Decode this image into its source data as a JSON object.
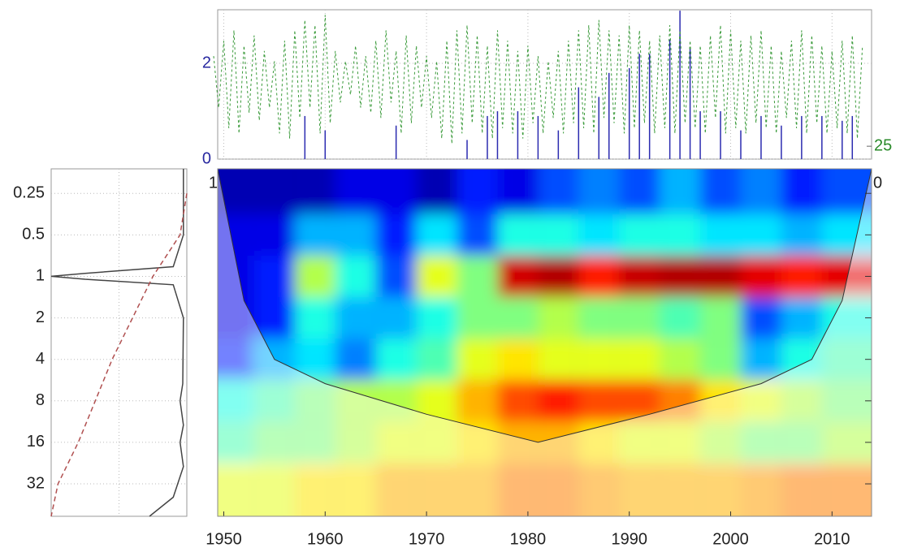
{
  "chart_data": [
    {
      "type": "line",
      "xlim": [
        1949.4,
        2013.9
      ],
      "ylim": [
        0,
        3.12
      ],
      "yticks": [
        0,
        2
      ],
      "y_color": "#2828a0",
      "y2lim": [
        20,
        78
      ],
      "y2ticks": [
        25
      ],
      "y2_color": "#2a8a2a",
      "series": [
        {
          "color": "#2b2bb0",
          "style": "stem",
          "x": [
            1958,
            1960,
            1967,
            1974,
            1976,
            1977,
            1979,
            1981,
            1983,
            1985,
            1987,
            1988,
            1990,
            1991,
            1992,
            1994,
            1995,
            1996,
            1997,
            1999,
            2001,
            2003,
            2005,
            2007,
            2009,
            2011,
            2012
          ],
          "values": [
            0.9,
            0.6,
            0.7,
            0.4,
            0.9,
            1.0,
            1.0,
            0.9,
            0.6,
            1.5,
            1.3,
            1.8,
            1.9,
            2.2,
            2.2,
            2.5,
            3.1,
            2.3,
            1.0,
            1.0,
            0.6,
            0.9,
            0.7,
            0.9,
            0.9,
            0.8,
            0.9
          ]
        },
        {
          "color": "#3a9a3a",
          "style": "dashed",
          "axis": "y2",
          "x": [
            1949,
            1949.5,
            1950,
            1950.5,
            1951,
            1951.5,
            1952,
            1952.5,
            1953,
            1953.5,
            1954,
            1954.5,
            1955,
            1955.5,
            1956,
            1956.5,
            1957,
            1957.5,
            1958,
            1958.5,
            1959,
            1959.5,
            1960,
            1960.5,
            1961,
            1961.5,
            1962,
            1962.5,
            1963,
            1963.5,
            1964,
            1964.5,
            1965,
            1965.5,
            1966,
            1966.5,
            1967,
            1967.5,
            1968,
            1968.5,
            1969,
            1969.5,
            1970,
            1970.5,
            1971,
            1971.5,
            1972,
            1972.5,
            1973,
            1973.5,
            1974,
            1974.5,
            1975,
            1975.5,
            1976,
            1976.5,
            1977,
            1977.5,
            1978,
            1978.5,
            1979,
            1979.5,
            1980,
            1980.5,
            1981,
            1981.5,
            1982,
            1982.5,
            1983,
            1983.5,
            1984,
            1984.5,
            1985,
            1985.5,
            1986,
            1986.5,
            1987,
            1987.5,
            1988,
            1988.5,
            1989,
            1989.5,
            1990,
            1990.5,
            1991,
            1991.5,
            1992,
            1992.5,
            1993,
            1993.5,
            1994,
            1994.5,
            1995,
            1995.5,
            1996,
            1996.5,
            1997,
            1997.5,
            1998,
            1998.5,
            1999,
            1999.5,
            2000,
            2000.5,
            2001,
            2001.5,
            2002,
            2002.5,
            2003,
            2003.5,
            2004,
            2004.5,
            2005,
            2005.5,
            2006,
            2006.5,
            2007,
            2007.5,
            2008,
            2008.5,
            2009,
            2009.5,
            2010,
            2010.5,
            2011,
            2011.5,
            2012,
            2012.5,
            2013
          ],
          "values": [
            60,
            40,
            66,
            32,
            70,
            30,
            64,
            38,
            68,
            35,
            62,
            40,
            58,
            30,
            66,
            28,
            70,
            36,
            74,
            40,
            72,
            30,
            76,
            34,
            62,
            42,
            58,
            45,
            64,
            40,
            60,
            38,
            66,
            36,
            70,
            42,
            62,
            30,
            68,
            34,
            64,
            40,
            60,
            36,
            58,
            28,
            66,
            26,
            70,
            30,
            72,
            34,
            68,
            30,
            64,
            28,
            70,
            32,
            66,
            30,
            62,
            28,
            64,
            34,
            60,
            30,
            58,
            36,
            62,
            30,
            66,
            34,
            70,
            32,
            72,
            30,
            74,
            36,
            70,
            34,
            68,
            30,
            72,
            32,
            70,
            34,
            66,
            30,
            68,
            32,
            72,
            30,
            70,
            34,
            66,
            32,
            64,
            30,
            68,
            36,
            72,
            30,
            70,
            32,
            66,
            30,
            68,
            34,
            70,
            32,
            64,
            30,
            62,
            36,
            66,
            32,
            70,
            30,
            68,
            34,
            64,
            30,
            62,
            32,
            66,
            30,
            68,
            28,
            64
          ]
        }
      ]
    },
    {
      "type": "heatmap",
      "xlim": [
        1949.4,
        2013.9
      ],
      "xticks": [
        1950,
        1960,
        1970,
        1980,
        1990,
        2000,
        2010
      ],
      "ylim": [
        0.166,
        55
      ],
      "corner_labels": [
        "1",
        "0"
      ],
      "rows": [
        0.25,
        0.5,
        1,
        2,
        4,
        8,
        16,
        32
      ],
      "columns": [
        1951,
        1955,
        1959,
        1963,
        1967,
        1971,
        1975,
        1979,
        1983,
        1987,
        1991,
        1995,
        1999,
        2003,
        2007,
        2011
      ],
      "power": [
        [
          0.05,
          0.05,
          0.05,
          0.1,
          0.1,
          0.05,
          0.15,
          0.1,
          0.2,
          0.25,
          0.2,
          0.3,
          0.2,
          0.25,
          0.15,
          0.2
        ],
        [
          0.1,
          0.1,
          0.3,
          0.3,
          0.15,
          0.35,
          0.2,
          0.4,
          0.4,
          0.35,
          0.4,
          0.4,
          0.35,
          0.35,
          0.3,
          0.35
        ],
        [
          0.1,
          0.15,
          0.55,
          0.4,
          0.2,
          0.6,
          0.5,
          0.92,
          0.95,
          0.85,
          0.93,
          0.95,
          0.95,
          0.9,
          0.85,
          0.9
        ],
        [
          0.1,
          0.15,
          0.4,
          0.3,
          0.3,
          0.4,
          0.5,
          0.5,
          0.55,
          0.5,
          0.5,
          0.45,
          0.5,
          0.2,
          0.3,
          0.4
        ],
        [
          0.15,
          0.3,
          0.35,
          0.25,
          0.4,
          0.45,
          0.6,
          0.65,
          0.6,
          0.6,
          0.6,
          0.55,
          0.5,
          0.3,
          0.4,
          0.45
        ],
        [
          0.4,
          0.45,
          0.5,
          0.55,
          0.55,
          0.6,
          0.7,
          0.8,
          0.85,
          0.8,
          0.8,
          0.75,
          0.65,
          0.6,
          0.55,
          0.5
        ],
        [
          0.45,
          0.5,
          0.5,
          0.55,
          0.6,
          0.6,
          0.65,
          0.7,
          0.7,
          0.65,
          0.6,
          0.6,
          0.55,
          0.5,
          0.5,
          0.55
        ],
        [
          0.6,
          0.6,
          0.65,
          0.65,
          0.7,
          0.7,
          0.7,
          0.75,
          0.75,
          0.72,
          0.7,
          0.7,
          0.7,
          0.72,
          0.75,
          0.75
        ]
      ],
      "coi": {
        "x": [
          1949.4,
          1952,
          1955,
          1960,
          1970,
          1981,
          1992,
          2003,
          2008,
          2011,
          2013.9
        ],
        "period": [
          0.166,
          1.5,
          4,
          6,
          10,
          16,
          10,
          6,
          4,
          1.5,
          0.166
        ]
      }
    },
    {
      "type": "spectrum",
      "ylim": [
        0.166,
        55
      ],
      "yticks": [
        0.25,
        0.5,
        1,
        2,
        4,
        8,
        16,
        32
      ],
      "xlim": [
        2,
        0
      ],
      "power": {
        "periods": [
          0.166,
          0.5,
          0.85,
          0.95,
          1.0,
          1.05,
          1.15,
          2,
          6,
          8,
          12,
          16,
          24,
          40,
          55
        ],
        "values": [
          0.05,
          0.05,
          0.2,
          1.5,
          2.0,
          1.5,
          0.2,
          0.05,
          0.06,
          0.1,
          0.05,
          0.1,
          0.05,
          0.2,
          0.55
        ],
        "color": "#444"
      },
      "significance": {
        "periods": [
          0.25,
          0.5,
          1,
          2,
          4,
          8,
          16,
          32,
          55
        ],
        "values": [
          0.0,
          0.1,
          0.5,
          0.8,
          1.1,
          1.35,
          1.6,
          1.9,
          2.0
        ],
        "color": "#b05050"
      }
    }
  ]
}
